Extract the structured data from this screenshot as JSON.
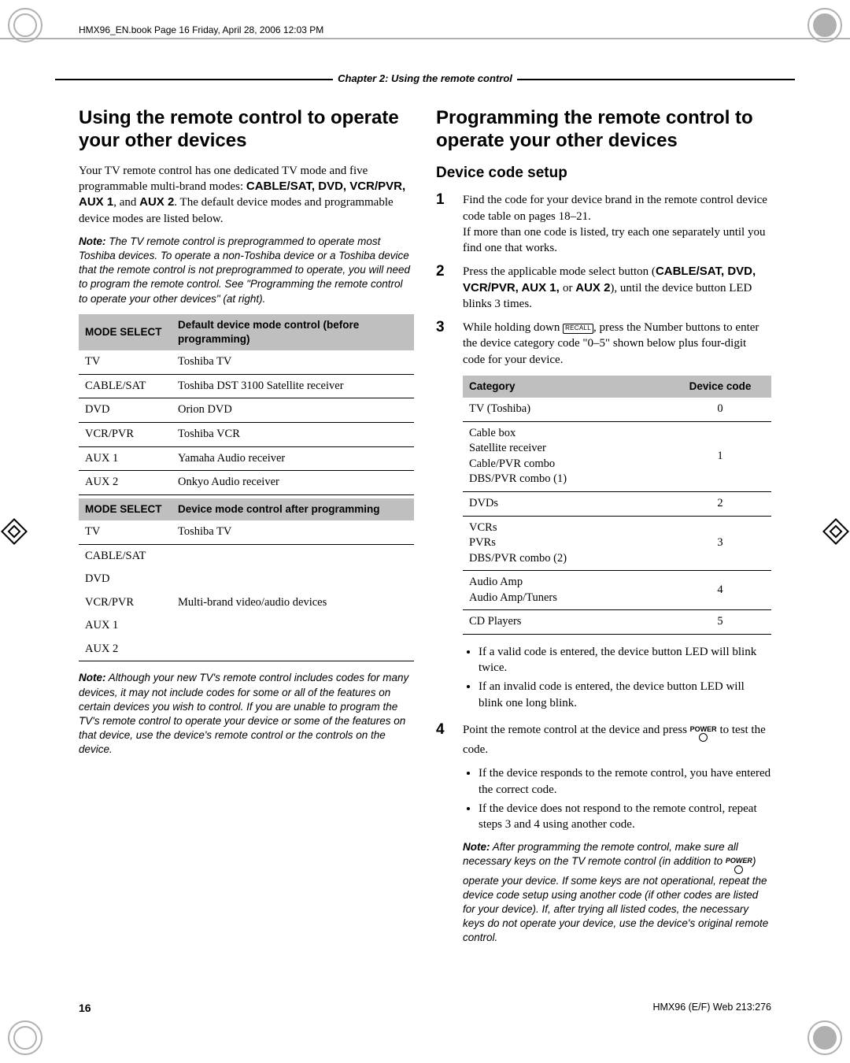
{
  "print": {
    "header_filename": "HMX96_EN.book  Page 16  Friday, April 28, 2006  12:03 PM",
    "chapter_bar": "Chapter 2: Using the remote control",
    "page_number": "16",
    "footer_right": "HMX96 (E/F) Web 213:276"
  },
  "left": {
    "heading": "Using the remote control to operate your other devices",
    "intro": "Your TV remote control has one dedicated TV mode and five programmable multi-brand modes: ",
    "intro_bold": "CABLE/SAT, DVD, VCR/PVR, AUX 1",
    "intro_mid": ", and ",
    "intro_bold2": "AUX 2",
    "intro_end": ". The default device modes and programmable device modes are listed below.",
    "note1_label": "Note:",
    "note1_body": " The TV remote control is preprogrammed to operate most Toshiba devices. To operate a non-Toshiba device or a Toshiba device that the remote control is not preprogrammed to operate, you will need to program the remote control. See \"Programming the remote control to operate your other devices\" (at right).",
    "tbl1_h1": "MODE SELECT",
    "tbl1_h2": "Default device mode control (before programming)",
    "tbl1_rows": [
      [
        "TV",
        "Toshiba TV"
      ],
      [
        "CABLE/SAT",
        "Toshiba DST 3100 Satellite receiver"
      ],
      [
        "DVD",
        "Orion DVD"
      ],
      [
        "VCR/PVR",
        "Toshiba VCR"
      ],
      [
        "AUX 1",
        "Yamaha Audio receiver"
      ],
      [
        "AUX 2",
        "Onkyo Audio receiver"
      ]
    ],
    "tbl2_h1": "MODE SELECT",
    "tbl2_h2": "Device mode control after programming",
    "tbl2_row0": [
      "TV",
      "Toshiba TV"
    ],
    "tbl2_span_labels": [
      "CABLE/SAT",
      "DVD",
      "VCR/PVR",
      "AUX 1",
      "AUX 2"
    ],
    "tbl2_span_value": "Multi-brand video/audio devices",
    "note2_label": "Note:",
    "note2_body": " Although your new TV's remote control includes codes for many devices, it may not include codes for some or all of the features on certain devices you wish to control. If you are unable to program the TV's remote control to operate your device or some of the features on that device, use the device's remote control or the controls on the device."
  },
  "right": {
    "heading": "Programming the remote control to operate your other devices",
    "subheading": "Device code setup",
    "step1a": "Find the code for your device brand in the remote control device code table on pages 18–21.",
    "step1b": "If more than one code is listed, try each one separately until you find one that works.",
    "step2_pre": "Press the applicable mode select button (",
    "step2_bold": "CABLE/SAT, DVD, VCR/PVR, AUX 1, ",
    "step2_mid": "or ",
    "step2_bold2": "AUX 2",
    "step2_post": "), until the device button LED blinks 3 times.",
    "step3_pre": "While holding down ",
    "step3_recall": "RECALL",
    "step3_post": ", press the Number buttons to enter the device category code \"0–5\" shown below plus four-digit code for your device.",
    "cat_h1": "Category",
    "cat_h2": "Device code",
    "cat_rows": [
      [
        "TV (Toshiba)",
        "0"
      ],
      [
        "Cable box\nSatellite receiver\nCable/PVR combo\nDBS/PVR combo (1)",
        "1"
      ],
      [
        "DVDs",
        "2"
      ],
      [
        "VCRs\nPVRs\nDBS/PVR combo (2)",
        "3"
      ],
      [
        "Audio Amp\nAudio Amp/Tuners",
        "4"
      ],
      [
        "CD Players",
        "5"
      ]
    ],
    "step3_bul1": "If a valid code is entered, the device button LED will blink twice.",
    "step3_bul2": "If an invalid code is entered, the device button LED will blink one long blink.",
    "step4_pre": "Point the remote control at the device and press ",
    "step4_power": "POWER",
    "step4_post": " to test the code.",
    "step4_bul1": "If the device responds to the remote control, you have entered the correct code.",
    "step4_bul2": "If the device does not respond to the remote control, repeat steps 3 and 4 using another code.",
    "note3_label": "Note:",
    "note3_body_pre": " After programming the remote control, make sure all necessary keys on the TV remote control (in addition to ",
    "note3_power": "POWER",
    "note3_body_post": ") operate your device. If some keys are not operational, repeat the device code setup using another code (if other codes are listed for your device). If, after trying all listed codes, the necessary keys do not operate your device, use the device's original remote control."
  }
}
